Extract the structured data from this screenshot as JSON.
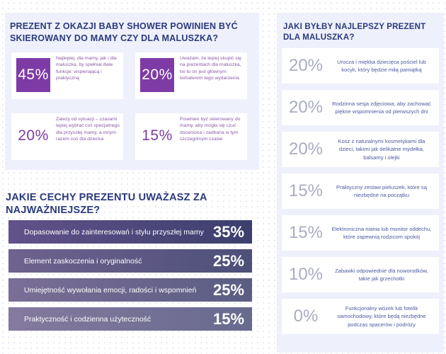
{
  "colors": {
    "purple": "#7e3ba6",
    "navy": "#2a3a7c",
    "panel": "#eef0fb",
    "gray_pct": "#a9acc2"
  },
  "q1": {
    "title": "PREZENT Z OKAZJI BABY SHOWER POWINIEN BYĆ SKIEROWANY DO MAMY CZY DLA MALUSZKA?",
    "cards": [
      {
        "pct": "45%",
        "text": "Najlepiej, dla mamy, jak i dla maluszka, by spełniał dwie funkcje: wspierającą i praktyczną"
      },
      {
        "pct": "20%",
        "text": "Uważam, że lepiej skupić się na prezentach dla maluszka, bo to on jest głównym bohaterem tego wydarzenia"
      },
      {
        "pct": "20%",
        "text": "Zależy od sytuacji – czasami lepiej wybrać coś specjalnego dla przyszłej mamy, a innym razem coś dla dziecka"
      },
      {
        "pct": "15%",
        "text": "Powinien być skierowany do mamy, aby mogła się czuć doceniona i zadbana w tym szczególnym czasie"
      }
    ]
  },
  "q2": {
    "title": "JAKIE CECHY PREZENTU UWAŻASZ ZA NAJWAŻNIEJSZE?",
    "items": [
      {
        "label": "Dopasowanie do zainteresowań i stylu przyszłej mamy",
        "value": "35%"
      },
      {
        "label": "Element zaskoczenia i oryginalność",
        "value": "25%"
      },
      {
        "label": "Umiejętność wywołania emocji, radości i wspomnień",
        "value": "25%"
      },
      {
        "label": "Praktyczność i codzienna użyteczność",
        "value": "15%"
      }
    ]
  },
  "q3": {
    "title": "JAKI BYŁBY NAJLEPSZY PREZENT DLA MALUSZKA?",
    "items": [
      {
        "pct": "20%",
        "text": "Urocza i miękka dziecięca pościel lub kocyk, który będzie miłą pamiątką"
      },
      {
        "pct": "20%",
        "text": "Rodzinna sesja zdjęciowa, aby zachować piękne wspomnienia od pierwszych dni"
      },
      {
        "pct": "20%",
        "text": "Kosz z naturalnymi kosmetykami dla dzieci, takimi jak delikatne mydełka, balsamy i olejki"
      },
      {
        "pct": "15%",
        "text": "Praktyczny zestaw pieluszek, które są niezbędne na początku"
      },
      {
        "pct": "15%",
        "text": "Elektroniczna niania lub monitor oddechu, które zapewnią rodzicom spokój"
      },
      {
        "pct": "10%",
        "text": "Zabawki odpowiednie dla noworodków, takie jak grzechotki"
      },
      {
        "pct": "0%",
        "text": "Funkcjonalny wózek lub fotelik samochodowy, które będą niezbędne podczas spacerów i podróży"
      }
    ]
  },
  "chart_data": [
    {
      "type": "table",
      "title": "PREZENT Z OKAZJI BABY SHOWER POWINIEN BYĆ SKIEROWANY DO MAMY CZY DLA MALUSZKA?",
      "categories": [
        "Najlepiej, dla mamy, jak i dla maluszka, by spełniał dwie funkcje: wspierającą i praktyczną",
        "Uważam, że lepiej skupić się na prezentach dla maluszka, bo to on jest głównym bohaterem tego wydarzenia",
        "Zależy od sytuacji – czasami lepiej wybrać coś specjalnego dla przyszłej mamy, a innym razem coś dla dziecka",
        "Powinien być skierowany do mamy, aby mogła się czuć doceniona i zadbana w tym szczególnym czasie"
      ],
      "values": [
        45,
        20,
        20,
        15
      ]
    },
    {
      "type": "bar",
      "title": "JAKIE CECHY PREZENTU UWAŻASZ ZA NAJWAŻNIEJSZE?",
      "categories": [
        "Dopasowanie do zainteresowań i stylu przyszłej mamy",
        "Element zaskoczenia i oryginalność",
        "Umiejętność wywołania emocji, radości i wspomnień",
        "Praktyczność i codzienna użyteczność"
      ],
      "values": [
        35,
        25,
        25,
        15
      ]
    },
    {
      "type": "table",
      "title": "JAKI BYŁBY NAJLEPSZY PREZENT DLA MALUSZKA?",
      "categories": [
        "Urocza i miękka dziecięca pościel lub kocyk, który będzie miłą pamiątką",
        "Rodzinna sesja zdjęciowa, aby zachować piękne wspomnienia od pierwszych dni",
        "Kosz z naturalnymi kosmetykami dla dzieci, takimi jak delikatne mydełka, balsamy i olejki",
        "Praktyczny zestaw pieluszek, które są niezbędne na początku",
        "Elektroniczna niania lub monitor oddechu, które zapewnią rodzicom spokój",
        "Zabawki odpowiednie dla noworodków, takie jak grzechotki",
        "Funkcjonalny wózek lub fotelik samochodowy, które będą niezbędne podczas spacerów i podróży"
      ],
      "values": [
        20,
        20,
        20,
        15,
        15,
        10,
        0
      ]
    }
  ]
}
